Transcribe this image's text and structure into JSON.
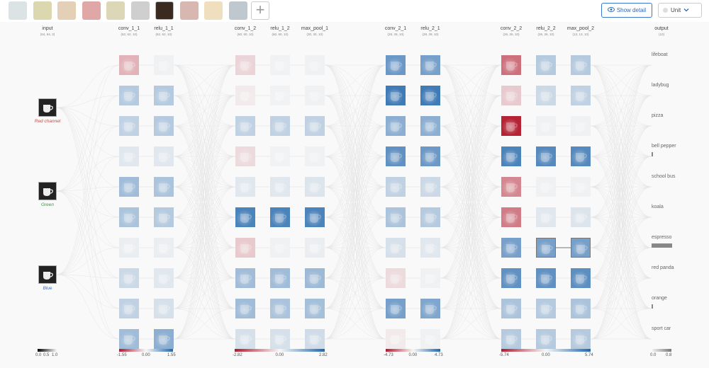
{
  "toolbar": {
    "thumbnails": [
      {
        "name": "lifeboat-thumbnail",
        "color": "#b9c7c9"
      },
      {
        "name": "ladybug-thumbnail",
        "color": "#b8b060"
      },
      {
        "name": "pizza-thumbnail",
        "color": "#c9a070"
      },
      {
        "name": "bell-pepper-thumbnail",
        "color": "#c25050"
      },
      {
        "name": "school-bus-thumbnail",
        "color": "#b8b070"
      },
      {
        "name": "koala-thumbnail",
        "color": "#a0a0a0"
      },
      {
        "name": "espresso-thumbnail",
        "color": "#3a2a20",
        "selected": true
      },
      {
        "name": "red-panda-thumbnail",
        "color": "#b07060"
      },
      {
        "name": "orange-thumbnail",
        "color": "#e0c080"
      },
      {
        "name": "sport-car-thumbnail",
        "color": "#8090a0"
      }
    ],
    "add_label": "+",
    "show_detail_label": "Show detail",
    "unit_label": "Unit"
  },
  "layers": [
    {
      "key": "input",
      "title": "input",
      "dims": "(64, 64, 3)"
    },
    {
      "key": "conv_1_1",
      "title": "conv_1_1",
      "dims": "(62, 62, 10)"
    },
    {
      "key": "relu_1_1",
      "title": "relu_1_1",
      "dims": "(62, 62, 10)"
    },
    {
      "key": "conv_1_2",
      "title": "conv_1_2",
      "dims": "(60, 60, 10)"
    },
    {
      "key": "relu_1_2",
      "title": "relu_1_2",
      "dims": "(60, 60, 10)"
    },
    {
      "key": "max_pool_1",
      "title": "max_pool_1",
      "dims": "(30, 30, 10)"
    },
    {
      "key": "conv_2_1",
      "title": "conv_2_1",
      "dims": "(28, 28, 10)"
    },
    {
      "key": "relu_2_1",
      "title": "relu_2_1",
      "dims": "(28, 28, 10)"
    },
    {
      "key": "conv_2_2",
      "title": "conv_2_2",
      "dims": "(26, 26, 10)"
    },
    {
      "key": "relu_2_2",
      "title": "relu_2_2",
      "dims": "(26, 26, 10)"
    },
    {
      "key": "max_pool_2",
      "title": "max_pool_2",
      "dims": "(13, 13, 10)"
    },
    {
      "key": "output",
      "title": "output",
      "dims": "(10)"
    }
  ],
  "input_channels": [
    {
      "label": "Red channel",
      "color": "#c0504d"
    },
    {
      "label": "Green",
      "color": "#3a9a3a"
    },
    {
      "label": "Blue",
      "color": "#3a6fbf"
    }
  ],
  "activations": {
    "conv_1_1": [
      -0.3,
      0.3,
      0.25,
      0.1,
      0.4,
      0.35,
      0.05,
      0.2,
      0.25,
      0.4
    ],
    "relu_1_1": [
      0.03,
      0.3,
      0.3,
      0.1,
      0.35,
      0.3,
      0.05,
      0.1,
      0.15,
      0.5
    ],
    "conv_1_2": [
      -0.15,
      -0.05,
      0.25,
      -0.12,
      0.1,
      0.8,
      -0.2,
      0.4,
      0.4,
      0.15
    ],
    "relu_1_2": [
      0.02,
      0.02,
      0.25,
      0.02,
      0.1,
      0.8,
      0.03,
      0.4,
      0.35,
      0.15
    ],
    "max_pool_1": [
      0.03,
      0.03,
      0.25,
      0.03,
      0.12,
      0.8,
      0.05,
      0.42,
      0.38,
      0.18
    ],
    "conv_2_1": [
      0.65,
      0.85,
      0.5,
      0.7,
      0.25,
      0.35,
      0.15,
      -0.12,
      0.6,
      -0.05
    ],
    "relu_2_1": [
      0.6,
      0.85,
      0.5,
      0.65,
      0.2,
      0.3,
      0.1,
      0.03,
      0.55,
      0.03
    ],
    "conv_2_2": [
      -0.6,
      -0.2,
      -0.95,
      0.8,
      -0.5,
      -0.55,
      0.6,
      0.7,
      0.35,
      0.3
    ],
    "relu_2_2": [
      0.3,
      0.2,
      0.03,
      0.75,
      0.03,
      0.1,
      0.6,
      0.7,
      0.3,
      0.3
    ],
    "max_pool_2": [
      0.3,
      0.25,
      0.03,
      0.75,
      0.03,
      0.12,
      0.6,
      0.72,
      0.35,
      0.3
    ]
  },
  "selected_unit": {
    "layer_a": "relu_2_2",
    "layer_b": "max_pool_2",
    "index": 6
  },
  "outputs": [
    {
      "label": "lifeboat",
      "prob": 0.0
    },
    {
      "label": "ladybug",
      "prob": 0.0
    },
    {
      "label": "pizza",
      "prob": 0.0
    },
    {
      "label": "bell pepper",
      "prob": 0.02
    },
    {
      "label": "school bus",
      "prob": 0.0
    },
    {
      "label": "koala",
      "prob": 0.0
    },
    {
      "label": "espresso",
      "prob": 0.85
    },
    {
      "label": "red panda",
      "prob": 0.0
    },
    {
      "label": "orange",
      "prob": 0.06
    },
    {
      "label": "sport car",
      "prob": 0.0
    }
  ],
  "legends": {
    "input": {
      "min": "0.0",
      "mid": "0.5",
      "max": "1.0"
    },
    "block1_conv": {
      "min": "-1.55",
      "mid": "0.00",
      "max": "1.55"
    },
    "block1_2": {
      "min": "-2.82",
      "mid": "0.00",
      "max": "2.82"
    },
    "block2_1": {
      "min": "-4.73",
      "mid": "0.00",
      "max": "4.73"
    },
    "block2_2": {
      "min": "-5.74",
      "mid": "0.00",
      "max": "5.74"
    },
    "output": {
      "min": "0.0",
      "max": "0.8"
    }
  },
  "colors": {
    "positive": "#2166ac",
    "negative": "#b2182b",
    "accent": "#3a78c9"
  }
}
